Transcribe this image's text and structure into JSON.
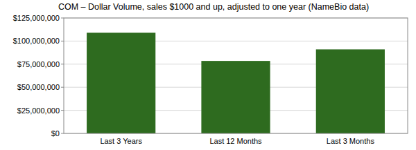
{
  "chart_data": {
    "type": "bar",
    "title": "COM – Dollar Volume, sales $1000 and up, adjusted to one year (NameBio data)",
    "categories": [
      "Last 3 Years",
      "Last 12 Months",
      "Last 3 Months"
    ],
    "values": [
      109000000,
      78500000,
      91000000
    ],
    "color": "#2e6b1f",
    "ylim": [
      0,
      125000000
    ],
    "yticks": [
      {
        "value": 0,
        "label": "$0"
      },
      {
        "value": 25000000,
        "label": "$25,000,000"
      },
      {
        "value": 50000000,
        "label": "$50,000,000"
      },
      {
        "value": 75000000,
        "label": "$75,000,000"
      },
      {
        "value": 100000000,
        "label": "$100,000,000"
      },
      {
        "value": 125000000,
        "label": "$125,000,000"
      }
    ],
    "grid": true
  }
}
